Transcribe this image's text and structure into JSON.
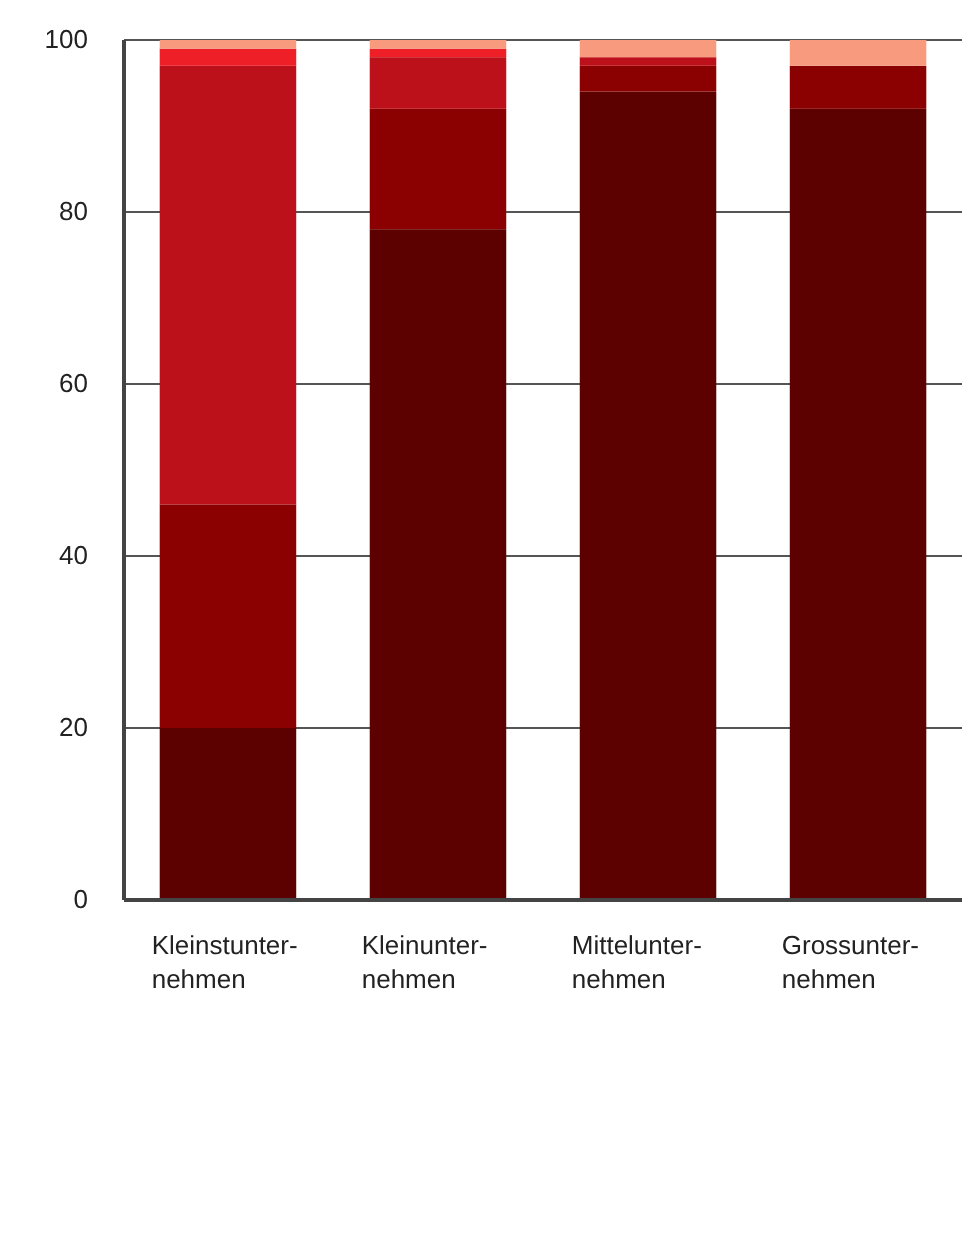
{
  "chart_data": {
    "type": "bar",
    "stacked": true,
    "categories": [
      "Kleinstunter-nehmen",
      "Kleinunter-nehmen",
      "Mittelunter-nehmen",
      "Grossunter-nehmen"
    ],
    "series": [
      {
        "color": "#5c0000",
        "values": [
          20,
          78,
          94,
          92
        ]
      },
      {
        "color": "#8b0000",
        "values": [
          26,
          14,
          3,
          5
        ]
      },
      {
        "color": "#bc111a",
        "values": [
          51,
          6,
          1,
          0
        ]
      },
      {
        "color": "#ee1f26",
        "values": [
          2,
          1,
          0,
          0
        ]
      },
      {
        "color": "#f79a7e",
        "values": [
          1,
          1,
          2,
          3
        ]
      }
    ],
    "ylim": [
      0,
      100
    ],
    "yticks": [
      0,
      20,
      40,
      60,
      80,
      100
    ],
    "grid": "y"
  }
}
